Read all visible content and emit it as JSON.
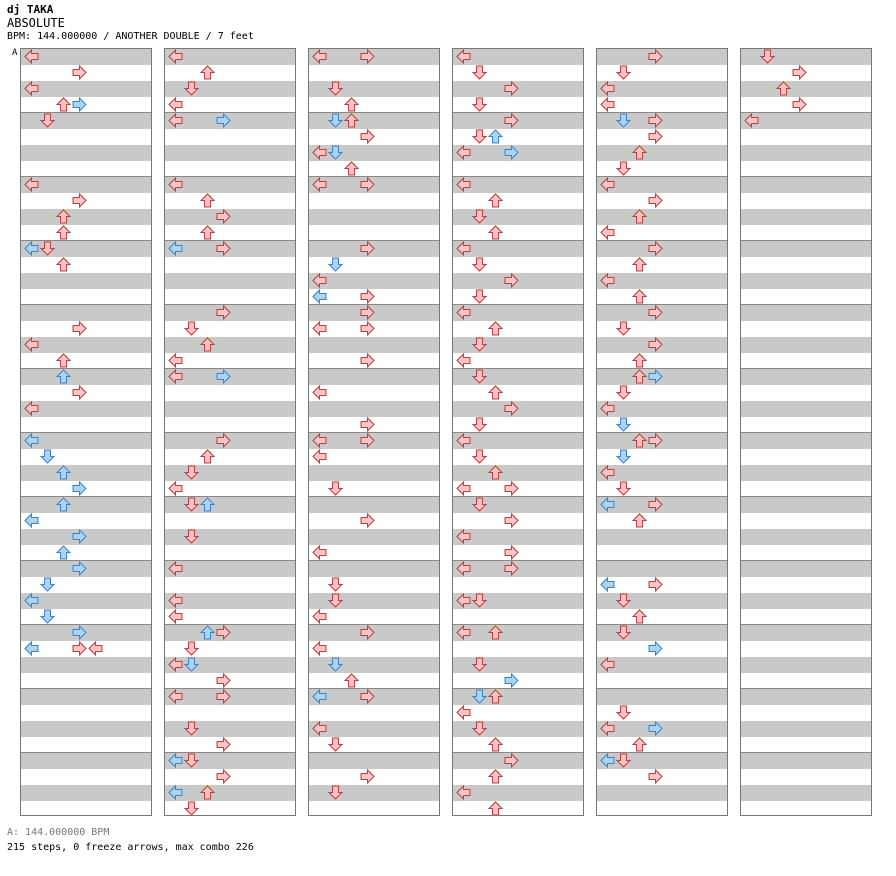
{
  "chart": {
    "artist": "dj TAKA",
    "title": "ABSOLUTE",
    "info_line": "BPM: 144.000000 / ANOTHER DOUBLE / 7 feet",
    "bpm_marker": "A",
    "footer_bpm": "A: 144.000000 BPM",
    "footer_stats": "215 steps, 0 freeze arrows, max combo 226"
  },
  "colors": {
    "red_fill": "#f9c4c4",
    "red_stroke": "#c43c3c",
    "blue_fill": "#a9d3f7",
    "blue_stroke": "#3d82c7",
    "band": "#c9c9c9",
    "border": "#777777"
  },
  "icons": {
    "left": "arrow-left-icon",
    "down": "arrow-down-icon",
    "up": "arrow-up-icon",
    "right": "arrow-right-icon"
  },
  "columns": [
    {
      "index": 1,
      "notes": [
        [
          0,
          "L",
          "r"
        ],
        [
          1,
          "R",
          "r"
        ],
        [
          2,
          "L",
          "r"
        ],
        [
          3,
          "R",
          "b"
        ],
        [
          3,
          "U",
          "r"
        ],
        [
          4,
          "D",
          "r"
        ],
        [
          8,
          "L",
          "r"
        ],
        [
          9,
          "R",
          "r"
        ],
        [
          10,
          "U",
          "r"
        ],
        [
          11,
          "U",
          "r"
        ],
        [
          12,
          "L",
          "b"
        ],
        [
          12,
          "D",
          "r"
        ],
        [
          13,
          "U",
          "r"
        ],
        [
          17,
          "R",
          "r"
        ],
        [
          18,
          "L",
          "r"
        ],
        [
          19,
          "U",
          "r"
        ],
        [
          20,
          "U",
          "b"
        ],
        [
          21,
          "R",
          "r"
        ],
        [
          22,
          "L",
          "r"
        ],
        [
          24,
          "L",
          "b"
        ],
        [
          25,
          "D",
          "b"
        ],
        [
          26,
          "U",
          "b"
        ],
        [
          27,
          "R",
          "b"
        ],
        [
          28,
          "U",
          "b"
        ],
        [
          29,
          "L",
          "b"
        ],
        [
          30,
          "R",
          "b"
        ],
        [
          31,
          "U",
          "b"
        ],
        [
          32,
          "R",
          "b"
        ],
        [
          33,
          "D",
          "b"
        ],
        [
          34,
          "L",
          "b"
        ],
        [
          35,
          "D",
          "b"
        ],
        [
          36,
          "R",
          "b"
        ],
        [
          37,
          "L",
          "b"
        ],
        [
          37,
          "R",
          "r"
        ],
        [
          37,
          "L",
          "r"
        ]
      ]
    },
    {
      "index": 2,
      "notes": [
        [
          0,
          "L",
          "r"
        ],
        [
          1,
          "U",
          "r"
        ],
        [
          2,
          "D",
          "r"
        ],
        [
          3,
          "L",
          "r"
        ],
        [
          4,
          "L",
          "r"
        ],
        [
          4,
          "R",
          "b"
        ],
        [
          8,
          "L",
          "r"
        ],
        [
          9,
          "U",
          "r"
        ],
        [
          10,
          "R",
          "r"
        ],
        [
          11,
          "U",
          "r"
        ],
        [
          12,
          "R",
          "r"
        ],
        [
          12,
          "L",
          "b"
        ],
        [
          16,
          "R",
          "r"
        ],
        [
          17,
          "D",
          "r"
        ],
        [
          18,
          "U",
          "r"
        ],
        [
          19,
          "L",
          "r"
        ],
        [
          20,
          "L",
          "r"
        ],
        [
          20,
          "R",
          "b"
        ],
        [
          24,
          "R",
          "r"
        ],
        [
          25,
          "U",
          "r"
        ],
        [
          26,
          "D",
          "r"
        ],
        [
          27,
          "L",
          "r"
        ],
        [
          28,
          "D",
          "r"
        ],
        [
          28,
          "U",
          "b"
        ],
        [
          30,
          "D",
          "r"
        ],
        [
          32,
          "L",
          "r"
        ],
        [
          34,
          "L",
          "r"
        ],
        [
          35,
          "L",
          "r"
        ],
        [
          36,
          "R",
          "r"
        ],
        [
          36,
          "U",
          "b"
        ],
        [
          37,
          "D",
          "r"
        ],
        [
          38,
          "L",
          "r"
        ],
        [
          38,
          "D",
          "b"
        ],
        [
          39,
          "R",
          "r"
        ],
        [
          40,
          "L",
          "r"
        ],
        [
          40,
          "R",
          "r"
        ],
        [
          42,
          "D",
          "r"
        ],
        [
          43,
          "R",
          "r"
        ],
        [
          44,
          "D",
          "r"
        ],
        [
          44,
          "L",
          "b"
        ],
        [
          45,
          "R",
          "r"
        ],
        [
          46,
          "L",
          "b"
        ],
        [
          46,
          "U",
          "r"
        ],
        [
          47,
          "D",
          "r"
        ]
      ]
    },
    {
      "index": 3,
      "notes": [
        [
          0,
          "L",
          "r"
        ],
        [
          0,
          "R",
          "r"
        ],
        [
          2,
          "D",
          "r"
        ],
        [
          3,
          "U",
          "r"
        ],
        [
          4,
          "U",
          "r"
        ],
        [
          4,
          "D",
          "b"
        ],
        [
          5,
          "R",
          "r"
        ],
        [
          6,
          "L",
          "r"
        ],
        [
          6,
          "D",
          "b"
        ],
        [
          7,
          "U",
          "r"
        ],
        [
          8,
          "L",
          "r"
        ],
        [
          8,
          "R",
          "r"
        ],
        [
          12,
          "R",
          "r"
        ],
        [
          13,
          "D",
          "b"
        ],
        [
          14,
          "L",
          "r"
        ],
        [
          15,
          "R",
          "r"
        ],
        [
          15,
          "L",
          "b"
        ],
        [
          16,
          "R",
          "r"
        ],
        [
          17,
          "R",
          "r"
        ],
        [
          17,
          "L",
          "r"
        ],
        [
          19,
          "R",
          "r"
        ],
        [
          21,
          "L",
          "r"
        ],
        [
          23,
          "R",
          "r"
        ],
        [
          24,
          "R",
          "r"
        ],
        [
          24,
          "L",
          "r"
        ],
        [
          25,
          "L",
          "r"
        ],
        [
          27,
          "D",
          "r"
        ],
        [
          29,
          "R",
          "r"
        ],
        [
          31,
          "L",
          "r"
        ],
        [
          33,
          "D",
          "r"
        ],
        [
          34,
          "D",
          "r"
        ],
        [
          35,
          "L",
          "r"
        ],
        [
          36,
          "R",
          "r"
        ],
        [
          37,
          "L",
          "r"
        ],
        [
          38,
          "D",
          "b"
        ],
        [
          39,
          "U",
          "r"
        ],
        [
          40,
          "R",
          "r"
        ],
        [
          40,
          "L",
          "b"
        ],
        [
          42,
          "L",
          "r"
        ],
        [
          43,
          "D",
          "r"
        ],
        [
          45,
          "R",
          "r"
        ],
        [
          46,
          "D",
          "r"
        ]
      ]
    },
    {
      "index": 4,
      "notes": [
        [
          0,
          "L",
          "r"
        ],
        [
          1,
          "D",
          "r"
        ],
        [
          2,
          "R",
          "r"
        ],
        [
          3,
          "D",
          "r"
        ],
        [
          4,
          "R",
          "r"
        ],
        [
          5,
          "D",
          "r"
        ],
        [
          5,
          "U",
          "b"
        ],
        [
          6,
          "R",
          "b"
        ],
        [
          6,
          "L",
          "r"
        ],
        [
          8,
          "L",
          "r"
        ],
        [
          9,
          "U",
          "r"
        ],
        [
          10,
          "D",
          "r"
        ],
        [
          11,
          "U",
          "r"
        ],
        [
          12,
          "L",
          "r"
        ],
        [
          13,
          "D",
          "r"
        ],
        [
          14,
          "R",
          "r"
        ],
        [
          15,
          "D",
          "r"
        ],
        [
          16,
          "L",
          "r"
        ],
        [
          17,
          "U",
          "r"
        ],
        [
          18,
          "D",
          "r"
        ],
        [
          19,
          "L",
          "r"
        ],
        [
          20,
          "D",
          "r"
        ],
        [
          21,
          "U",
          "r"
        ],
        [
          22,
          "R",
          "r"
        ],
        [
          23,
          "D",
          "r"
        ],
        [
          24,
          "L",
          "r"
        ],
        [
          25,
          "D",
          "r"
        ],
        [
          26,
          "U",
          "r"
        ],
        [
          27,
          "L",
          "r"
        ],
        [
          27,
          "R",
          "r"
        ],
        [
          28,
          "D",
          "r"
        ],
        [
          29,
          "R",
          "r"
        ],
        [
          30,
          "L",
          "r"
        ],
        [
          31,
          "R",
          "r"
        ],
        [
          32,
          "L",
          "r"
        ],
        [
          32,
          "R",
          "r"
        ],
        [
          34,
          "L",
          "r"
        ],
        [
          34,
          "D",
          "r"
        ],
        [
          36,
          "L",
          "r"
        ],
        [
          36,
          "U",
          "r"
        ],
        [
          38,
          "D",
          "r"
        ],
        [
          39,
          "R",
          "b"
        ],
        [
          40,
          "D",
          "b"
        ],
        [
          40,
          "U",
          "r"
        ],
        [
          41,
          "L",
          "r"
        ],
        [
          42,
          "D",
          "r"
        ],
        [
          43,
          "U",
          "r"
        ],
        [
          44,
          "R",
          "r"
        ],
        [
          45,
          "U",
          "r"
        ],
        [
          46,
          "L",
          "r"
        ],
        [
          47,
          "U",
          "r"
        ]
      ]
    },
    {
      "index": 5,
      "notes": [
        [
          0,
          "R",
          "r"
        ],
        [
          1,
          "D",
          "r"
        ],
        [
          2,
          "L",
          "r"
        ],
        [
          3,
          "L",
          "r"
        ],
        [
          4,
          "D",
          "b"
        ],
        [
          4,
          "R",
          "r"
        ],
        [
          5,
          "R",
          "r"
        ],
        [
          6,
          "U",
          "r"
        ],
        [
          7,
          "D",
          "r"
        ],
        [
          8,
          "L",
          "r"
        ],
        [
          9,
          "R",
          "r"
        ],
        [
          10,
          "U",
          "r"
        ],
        [
          11,
          "L",
          "r"
        ],
        [
          12,
          "R",
          "r"
        ],
        [
          13,
          "U",
          "r"
        ],
        [
          14,
          "L",
          "r"
        ],
        [
          15,
          "U",
          "r"
        ],
        [
          16,
          "R",
          "r"
        ],
        [
          17,
          "D",
          "r"
        ],
        [
          18,
          "R",
          "r"
        ],
        [
          19,
          "U",
          "r"
        ],
        [
          20,
          "U",
          "r"
        ],
        [
          20,
          "R",
          "b"
        ],
        [
          21,
          "D",
          "r"
        ],
        [
          22,
          "L",
          "r"
        ],
        [
          23,
          "D",
          "b"
        ],
        [
          24,
          "R",
          "r"
        ],
        [
          24,
          "U",
          "r"
        ],
        [
          25,
          "D",
          "b"
        ],
        [
          26,
          "L",
          "r"
        ],
        [
          27,
          "D",
          "r"
        ],
        [
          28,
          "R",
          "r"
        ],
        [
          28,
          "L",
          "b"
        ],
        [
          29,
          "U",
          "r"
        ],
        [
          33,
          "R",
          "r"
        ],
        [
          33,
          "L",
          "b"
        ],
        [
          34,
          "D",
          "r"
        ],
        [
          35,
          "U",
          "r"
        ],
        [
          36,
          "D",
          "r"
        ],
        [
          37,
          "R",
          "b"
        ],
        [
          38,
          "L",
          "r"
        ],
        [
          41,
          "D",
          "r"
        ],
        [
          42,
          "L",
          "r"
        ],
        [
          42,
          "R",
          "b"
        ],
        [
          43,
          "U",
          "r"
        ],
        [
          44,
          "D",
          "r"
        ],
        [
          44,
          "L",
          "b"
        ],
        [
          45,
          "R",
          "r"
        ]
      ]
    },
    {
      "index": 6,
      "notes": [
        [
          0,
          "D",
          "r"
        ],
        [
          1,
          "R",
          "r"
        ],
        [
          2,
          "U",
          "r"
        ],
        [
          3,
          "R",
          "r"
        ],
        [
          4,
          "L",
          "r"
        ]
      ]
    }
  ]
}
